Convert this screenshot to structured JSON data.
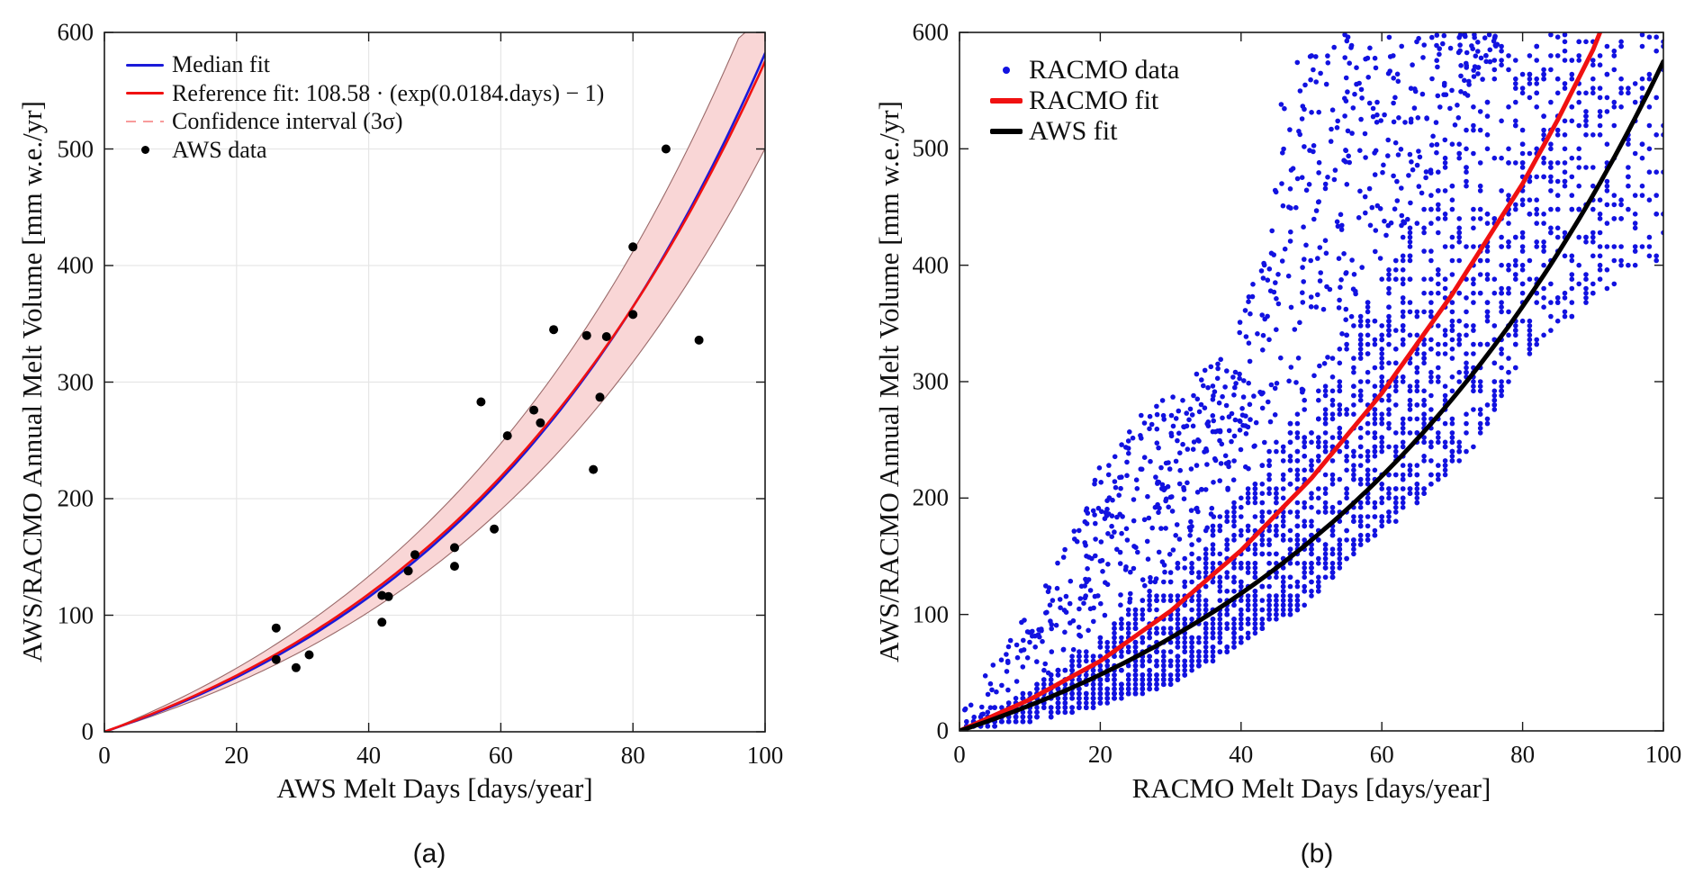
{
  "figure": {
    "background": "#ffffff"
  },
  "chart_data": [
    {
      "id": "a",
      "type": "scatter",
      "caption": "(a)",
      "xlabel": "AWS Melt Days [days/year]",
      "ylabel": "AWS/RACMO Annual Melt Volume [mm w.e./yr]",
      "xlim": [
        0,
        100
      ],
      "ylim": [
        0,
        600
      ],
      "xticks": [
        0,
        20,
        40,
        60,
        80,
        100
      ],
      "yticks": [
        0,
        100,
        200,
        300,
        400,
        500,
        600
      ],
      "grid": true,
      "grid_color": "#e6e6e6",
      "legend_position": "top-left",
      "legend": [
        {
          "label": "Median fit",
          "type": "line",
          "color": "#1a1ad9"
        },
        {
          "label": "Reference fit: 108.58 · (exp(0.0184.days) − 1)",
          "type": "line",
          "color": "#f01111"
        },
        {
          "label": "Confidence interval (3σ)",
          "type": "dashed-line",
          "color": "#f89b9b"
        },
        {
          "label": "AWS data",
          "type": "dot",
          "color": "#000000"
        }
      ],
      "series": [
        {
          "name": "Median fit",
          "type": "line",
          "color": "#1a1ad9",
          "width": 2.6,
          "model": {
            "form": "a*(exp(b*days)-1)",
            "a": 100.0,
            "b": 0.0192
          }
        },
        {
          "name": "Reference fit",
          "type": "line",
          "color": "#f01111",
          "width": 2.6,
          "formula_label": "108.58 · (exp(0.0184.days) − 1)",
          "model": {
            "form": "a*(exp(b*days)-1)",
            "a": 108.58,
            "b": 0.0184
          }
        },
        {
          "name": "Confidence interval (3σ)",
          "type": "band",
          "basis": "Reference fit",
          "lower_factor": 0.87,
          "upper_factor": 1.13,
          "fill": "#f9d6d6",
          "edge": "#9a6a6a"
        },
        {
          "name": "AWS data",
          "type": "scatter",
          "color": "#000000",
          "marker_radius": 5,
          "points": [
            [
              26,
              62
            ],
            [
              26,
              89
            ],
            [
              29,
              55
            ],
            [
              31,
              66
            ],
            [
              42,
              94
            ],
            [
              42,
              117
            ],
            [
              43,
              116
            ],
            [
              46,
              138
            ],
            [
              47,
              152
            ],
            [
              53,
              142
            ],
            [
              53,
              158
            ],
            [
              57,
              283
            ],
            [
              59,
              174
            ],
            [
              61,
              254
            ],
            [
              65,
              276
            ],
            [
              66,
              265
            ],
            [
              68,
              345
            ],
            [
              73,
              340
            ],
            [
              74,
              225
            ],
            [
              75,
              287
            ],
            [
              76,
              339
            ],
            [
              80,
              358
            ],
            [
              80,
              416
            ],
            [
              85,
              500
            ],
            [
              90,
              336
            ]
          ]
        }
      ]
    },
    {
      "id": "b",
      "type": "scatter",
      "caption": "(b)",
      "xlabel": "RACMO Melt Days [days/year]",
      "ylabel": "AWS/RACMO Annual Melt Volume [mm w.e./yr]",
      "xlim": [
        0,
        100
      ],
      "ylim": [
        0,
        600
      ],
      "xticks": [
        0,
        20,
        40,
        60,
        80,
        100
      ],
      "yticks": [
        0,
        100,
        200,
        300,
        400,
        500,
        600
      ],
      "grid": false,
      "legend_position": "top-left",
      "legend": [
        {
          "label": "RACMO data",
          "type": "dot",
          "color": "#1212e0"
        },
        {
          "label": "RACMO fit",
          "type": "line",
          "color": "#f01111"
        },
        {
          "label": "AWS  fit",
          "type": "line",
          "color": "#000000"
        }
      ],
      "series": [
        {
          "name": "RACMO data",
          "type": "scatter-cloud",
          "color": "#1212e0",
          "marker_radius": 2.8,
          "scatter_model": {
            "seed": 42,
            "x_min": 1,
            "x_max": 100,
            "counts": [
              [
                1,
                9
              ],
              [
                5,
                16
              ],
              [
                15,
                36
              ],
              [
                25,
                46
              ],
              [
                62,
                46
              ],
              [
                75,
                32
              ],
              [
                85,
                22
              ],
              [
                100,
                9
              ]
            ],
            "lower_envelope": [
              [
                0,
                1
              ],
              [
                10,
                8
              ],
              [
                20,
                22
              ],
              [
                30,
                40
              ],
              [
                40,
                75
              ],
              [
                50,
                112
              ],
              [
                57,
                160
              ],
              [
                63,
                185
              ],
              [
                69,
                220
              ],
              [
                74,
                250
              ],
              [
                80,
                320
              ],
              [
                85,
                345
              ],
              [
                90,
                370
              ],
              [
                100,
                405
              ]
            ],
            "upper_envelope": [
              [
                0,
                12
              ],
              [
                5,
                60
              ],
              [
                10,
                105
              ],
              [
                15,
                160
              ],
              [
                20,
                230
              ],
              [
                26,
                272
              ],
              [
                32,
                300
              ],
              [
                38,
                325
              ],
              [
                42,
                390
              ],
              [
                44,
                430
              ],
              [
                46,
                545
              ],
              [
                48,
                580
              ],
              [
                52,
                590
              ],
              [
                55,
                600
              ],
              [
                100,
                600
              ]
            ],
            "core_factor": 1.35,
            "core_exponent": 1.4,
            "tail_fraction": 0.25,
            "y_step": 4
          }
        },
        {
          "name": "RACMO fit",
          "type": "line",
          "color": "#f01111",
          "width": 5,
          "x": [
            0,
            10,
            20,
            30,
            40,
            50,
            60,
            70,
            80,
            85,
            90,
            91
          ],
          "y": [
            0,
            27,
            60,
            103,
            155,
            217,
            290,
            375,
            470,
            525,
            585,
            600
          ]
        },
        {
          "name": "AWS fit",
          "type": "line",
          "color": "#000000",
          "width": 5,
          "model": {
            "form": "a*(exp(b*days)-1)",
            "a": 108.58,
            "b": 0.0184
          }
        }
      ]
    }
  ]
}
